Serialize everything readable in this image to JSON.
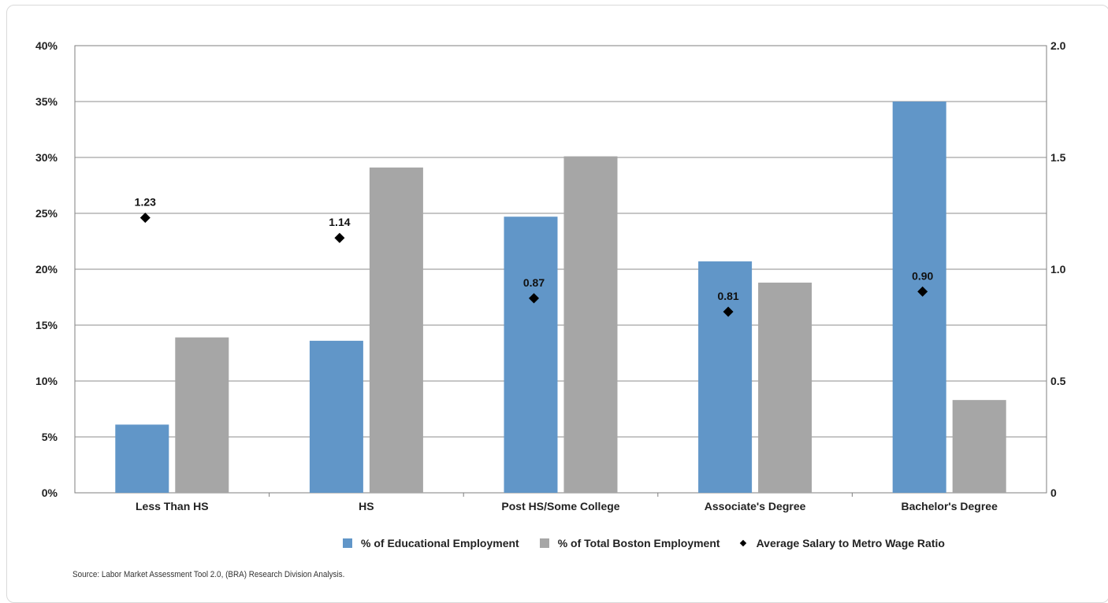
{
  "chart_data": {
    "type": "bar",
    "categories": [
      "Less Than HS",
      "HS",
      "Post HS/Some College",
      "Associate's Degree",
      "Bachelor's Degree"
    ],
    "series": [
      {
        "name": "% of Educational Employment",
        "values": [
          6.1,
          13.6,
          24.7,
          20.7,
          35.0
        ],
        "color": "#6196c8",
        "axis": "left"
      },
      {
        "name": "% of Total Boston Employment",
        "values": [
          13.9,
          29.1,
          30.1,
          18.8,
          8.3
        ],
        "color": "#a6a6a6",
        "axis": "left"
      },
      {
        "name": "Average Salary to Metro Wage Ratio",
        "values": [
          1.23,
          1.14,
          0.87,
          0.81,
          0.9
        ],
        "labels": [
          "1.23",
          "1.14",
          "0.87",
          "0.81",
          "0.90"
        ],
        "type": "scatter",
        "marker": "diamond",
        "color": "#000000",
        "axis": "right"
      }
    ],
    "y_left": {
      "ylim": [
        0,
        40
      ],
      "ticks": [
        "0%",
        "5%",
        "10%",
        "15%",
        "20%",
        "25%",
        "30%",
        "35%",
        "40%"
      ]
    },
    "y_right": {
      "ylim": [
        0,
        2.0
      ],
      "ticks": [
        "0",
        "0.5",
        "1.0",
        "1.5",
        "2.0"
      ]
    },
    "grid": true,
    "legend_position": "bottom-right"
  },
  "legend": [
    {
      "label": "% of Educational Employment",
      "color": "#6196c8"
    },
    {
      "label": "% of Total Boston Employment",
      "color": "#a6a6a6"
    },
    {
      "label": "Average Salary to Metro Wage Ratio",
      "color": "#000000"
    }
  ],
  "source": "Source: Labor Market Assessment Tool 2.0, (BRA) Research Division Analysis."
}
